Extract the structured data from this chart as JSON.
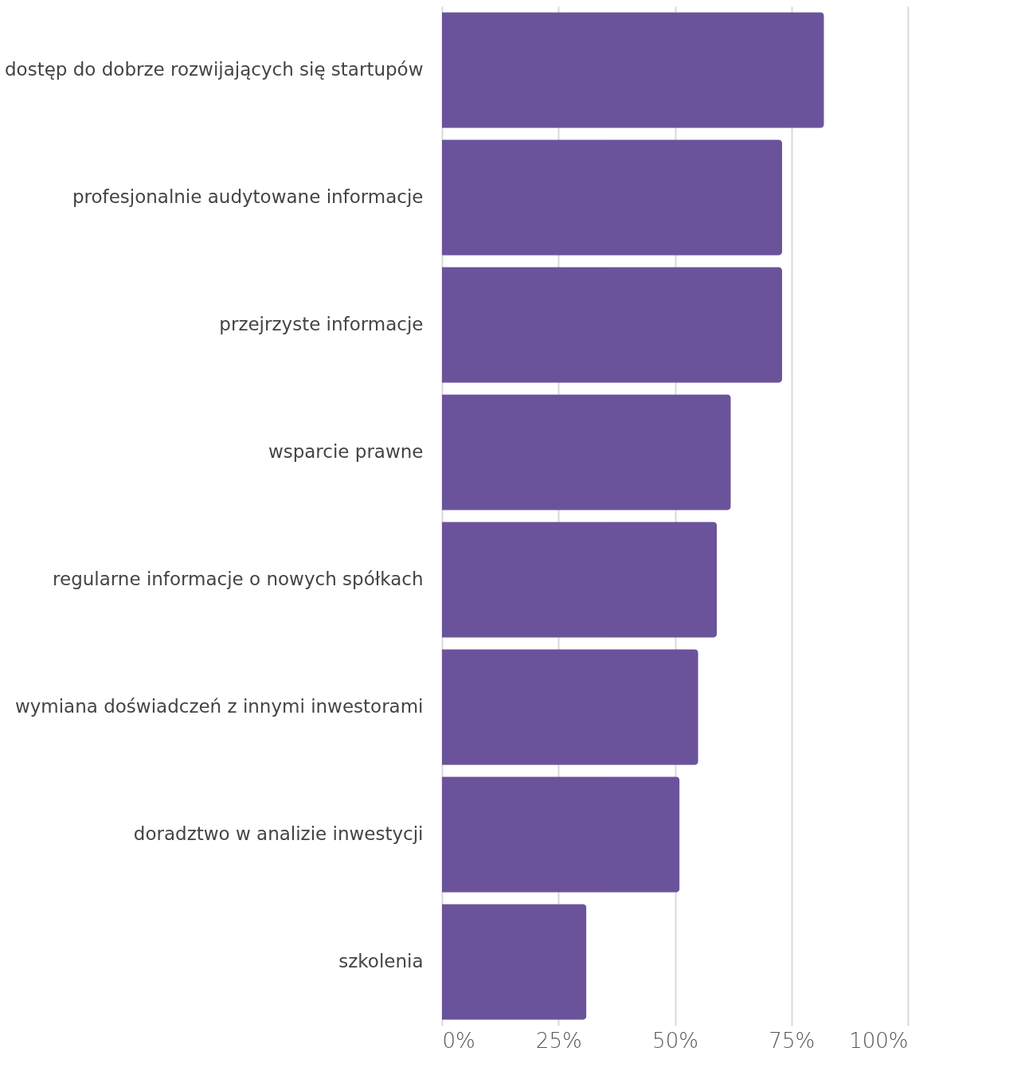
{
  "chart_data": {
    "type": "bar",
    "orientation": "horizontal",
    "categories": [
      "dostęp do dobrze rozwijających się startupów",
      "profesjonalnie audytowane informacje",
      "przejrzyste informacje",
      "wsparcie prawne",
      "regularne informacje o nowych spółkach",
      "wymiana doświadczeń z innymi inwestorami",
      "doradztwo w analizie inwestycji",
      "szkolenia"
    ],
    "values": [
      82,
      73,
      73,
      62,
      59,
      55,
      51,
      31
    ],
    "color": "#6b539b",
    "xlim": [
      0,
      100
    ],
    "xticks": [
      {
        "value": 0,
        "label": "0%"
      },
      {
        "value": 25,
        "label": "25%"
      },
      {
        "value": 50,
        "label": "50%"
      },
      {
        "value": 75,
        "label": "75%"
      },
      {
        "value": 100,
        "label": "100%"
      }
    ],
    "grid": "x"
  }
}
